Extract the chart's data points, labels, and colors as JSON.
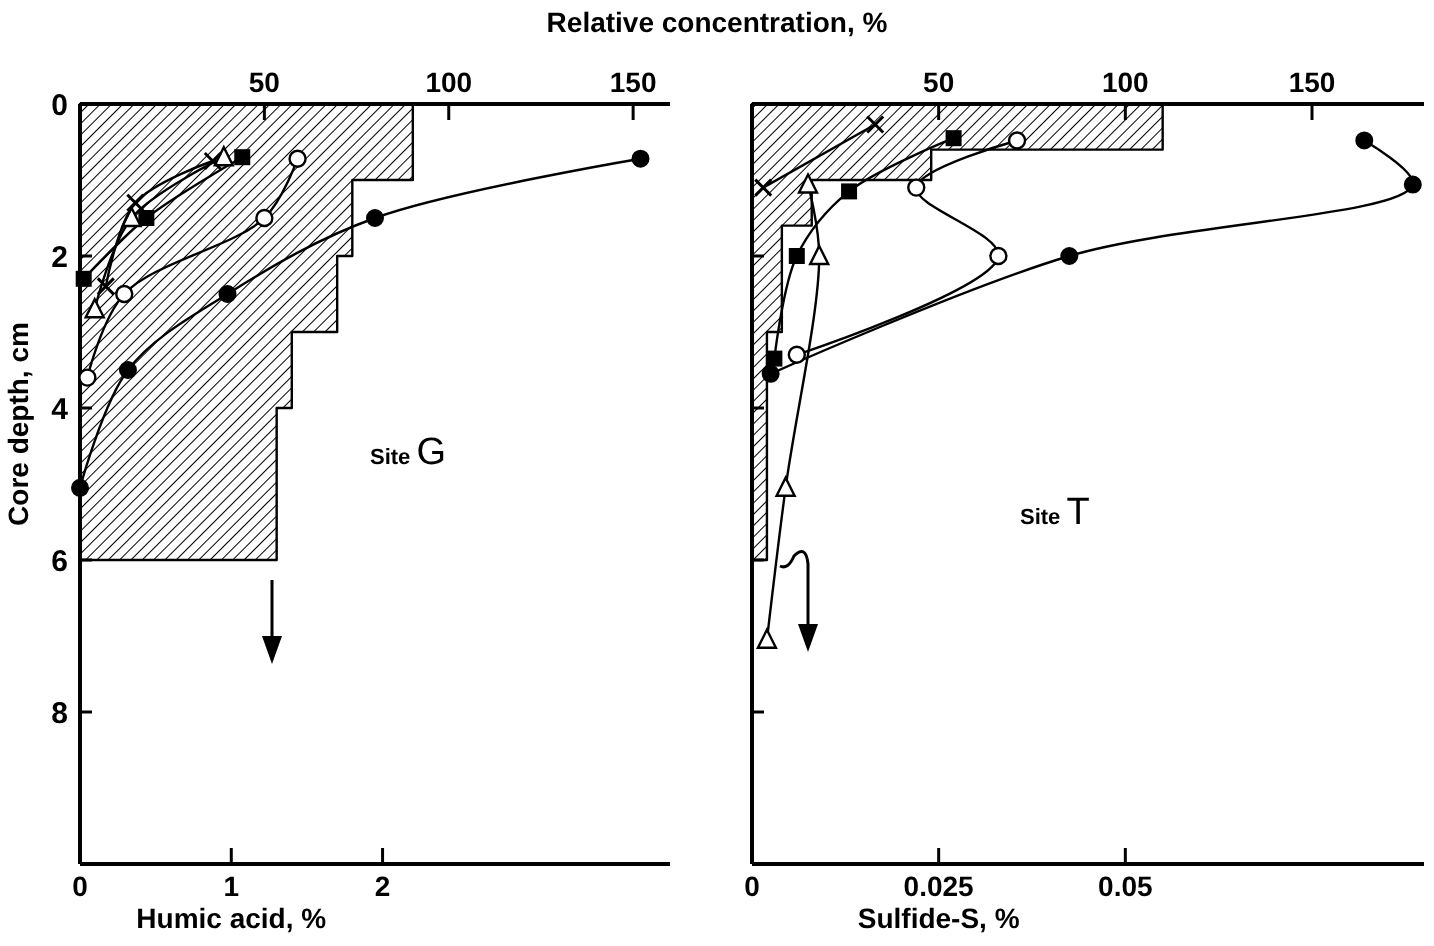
{
  "chart_data": [
    {
      "type": "line",
      "x2label": "Relative concentration, %",
      "xlabel": "Humic acid, %",
      "ylabel": "Core depth, cm",
      "xlim": [
        0,
        3.9
      ],
      "xticks": [
        0,
        1,
        2
      ],
      "x2lim": [
        0,
        160
      ],
      "x2ticks": [
        50,
        100,
        150
      ],
      "ylim": [
        10,
        0
      ],
      "yticks": [
        0,
        2,
        4,
        6,
        8
      ],
      "annotations": [
        "Site G"
      ],
      "line_style": "solid",
      "series": [
        {
          "type": "area",
          "x": [
            0,
            2.2,
            2.2,
            1.8,
            1.8,
            1.7,
            1.7,
            1.4,
            1.4,
            1.3,
            1.3,
            0
          ],
          "values": [
            0,
            0,
            1,
            1,
            2,
            2,
            3,
            3,
            4,
            4,
            6,
            6
          ],
          "color": "#000000"
        },
        {
          "axis": "x2",
          "marker": "circle",
          "color": "#000000",
          "x": [
            152,
            80,
            40,
            13,
            0
          ],
          "values": [
            0.72,
            1.5,
            2.5,
            3.5,
            5.05
          ]
        },
        {
          "axis": "x2",
          "marker": "circle-open",
          "color": "#000000",
          "x": [
            59,
            50,
            12,
            2
          ],
          "values": [
            0.72,
            1.5,
            2.5,
            3.6
          ]
        },
        {
          "axis": "x2",
          "marker": "square",
          "color": "#000000",
          "x": [
            44,
            18,
            1
          ],
          "values": [
            0.7,
            1.5,
            2.3
          ]
        },
        {
          "axis": "x2",
          "marker": "triangle-open",
          "color": "#000000",
          "x": [
            39,
            14,
            4
          ],
          "values": [
            0.7,
            1.5,
            2.7
          ]
        },
        {
          "axis": "x2",
          "marker": "cross",
          "color": "#000000",
          "x": [
            36,
            15,
            7
          ],
          "values": [
            0.75,
            1.3,
            2.4
          ]
        }
      ]
    },
    {
      "type": "line",
      "xlabel": "Sulfide-S, %",
      "xlim": [
        0,
        0.09
      ],
      "xticks": [
        0,
        0.025,
        0.05
      ],
      "x2lim": [
        0,
        180
      ],
      "x2ticks": [
        50,
        100,
        150
      ],
      "ylim": [
        10,
        0
      ],
      "yticks": [
        0,
        2,
        4,
        6,
        8
      ],
      "tick_labels": "x",
      "annotations": [
        "Site T"
      ],
      "line_style": "solid",
      "series": [
        {
          "type": "area",
          "x": [
            0,
            0.055,
            0.055,
            0.024,
            0.024,
            0.008,
            0.008,
            0.004,
            0.004,
            0.002,
            0.002,
            0
          ],
          "values": [
            0,
            0,
            0.6,
            0.6,
            1,
            1,
            1.6,
            1.6,
            3,
            3,
            6,
            6
          ],
          "color": "#000000"
        },
        {
          "axis": "x2",
          "marker": "circle",
          "color": "#000000",
          "x": [
            164,
            177,
            85,
            5
          ],
          "values": [
            0.48,
            1.06,
            2.0,
            3.55
          ]
        },
        {
          "axis": "x2",
          "marker": "circle-open",
          "color": "#000000",
          "x": [
            71,
            44,
            66,
            12
          ],
          "values": [
            0.48,
            1.1,
            2.0,
            3.3
          ]
        },
        {
          "axis": "x2",
          "marker": "square",
          "color": "#000000",
          "x": [
            54,
            26,
            12,
            6
          ],
          "values": [
            0.45,
            1.15,
            2.0,
            3.35
          ]
        },
        {
          "axis": "x2",
          "marker": "triangle-open",
          "color": "#000000",
          "x": [
            15,
            18,
            9,
            4
          ],
          "values": [
            1.06,
            2.0,
            5.05,
            7.05
          ]
        },
        {
          "axis": "x2",
          "marker": "cross",
          "color": "#000000",
          "x": [
            33,
            3
          ],
          "values": [
            0.27,
            1.1
          ]
        }
      ]
    }
  ]
}
